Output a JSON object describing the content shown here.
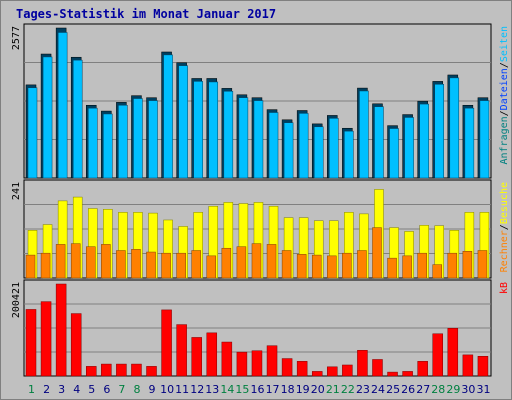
{
  "chart_data": {
    "type": "bar",
    "title": "Tages-Statistik im Monat Januar 2017",
    "categories": [
      "1",
      "2",
      "3",
      "4",
      "5",
      "6",
      "7",
      "8",
      "9",
      "10",
      "11",
      "12",
      "13",
      "14",
      "15",
      "16",
      "17",
      "18",
      "19",
      "20",
      "21",
      "22",
      "23",
      "24",
      "25",
      "26",
      "27",
      "28",
      "29",
      "30",
      "31"
    ],
    "weekend_days": [
      "1",
      "7",
      "8",
      "14",
      "15",
      "21",
      "22",
      "28",
      "29"
    ],
    "colors": {
      "frame_dark": "#808080",
      "panel_bg": "#c0c0c0",
      "title": "#0000a0",
      "gridline": "#808080",
      "anfragen": "#008080",
      "dateien": "#0040ff",
      "seiten": "#00c0ff",
      "besuche": "#ffff00",
      "rechner": "#ff8000",
      "kb": "#ff0000",
      "weekday_label": "#000080",
      "weekend_label": "#008040"
    },
    "panels": [
      {
        "tick_label": "2577",
        "ymax": 2577,
        "legend": [
          {
            "text": "Anfragen",
            "color": "#008080"
          },
          {
            "text": "/",
            "color": "#000000"
          },
          {
            "text": "Dateien",
            "color": "#0040ff"
          },
          {
            "text": "/",
            "color": "#000000"
          },
          {
            "text": "Seiten",
            "color": "#00c0ff"
          }
        ],
        "series": [
          {
            "name": "Anfragen",
            "color": "#004060",
            "values": [
              1600,
              2130,
              2577,
              2075,
              1250,
              1150,
              1300,
              1415,
              1380,
              2165,
              1980,
              1710,
              1710,
              1540,
              1430,
              1380,
              1175,
              1000,
              1160,
              930,
              1075,
              855,
              1545,
              1275,
              900,
              1090,
              1320,
              1660,
              1770,
              1250,
              1380
            ]
          },
          {
            "name": "Dateien",
            "color": "#00c0ff",
            "values": [
              1550,
              2080,
              2500,
              2025,
              1200,
              1100,
              1250,
              1365,
              1330,
              2115,
              1930,
              1660,
              1650,
              1490,
              1380,
              1330,
              1125,
              950,
              1110,
              880,
              1025,
              805,
              1495,
              1225,
              850,
              1040,
              1270,
              1610,
              1720,
              1200,
              1330
            ]
          }
        ]
      },
      {
        "tick_label": "241",
        "ymax": 241,
        "legend": [
          {
            "text": "Rechner",
            "color": "#ff8000"
          },
          {
            "text": "/",
            "color": "#000000"
          },
          {
            "text": "Besuche",
            "color": "#ffff00"
          }
        ],
        "series": [
          {
            "name": "Besuche",
            "color": "#ffff00",
            "values": [
              125,
              140,
              202,
              212,
              182,
              180,
              172,
              172,
              170,
              152,
              135,
              172,
              188,
              198,
              195,
              198,
              188,
              158,
              158,
              150,
              150,
              172,
              168,
              232,
              132,
              122,
              138,
              137,
              125,
              172,
              172
            ]
          },
          {
            "name": "Rechner",
            "color": "#ff8000",
            "values": [
              60,
              65,
              88,
              90,
              82,
              88,
              72,
              75,
              68,
              65,
              65,
              72,
              58,
              78,
              82,
              90,
              88,
              72,
              62,
              60,
              58,
              65,
              72,
              132,
              52,
              58,
              65,
              35,
              65,
              70,
              72
            ]
          }
        ]
      },
      {
        "tick_label": "200421",
        "ymax": 200421,
        "legend": [
          {
            "text": "kB",
            "color": "#ff0000"
          }
        ],
        "series": [
          {
            "name": "kB",
            "color": "#ff0000",
            "values": [
              145000,
              162000,
              200421,
              136000,
              21000,
              26000,
              26000,
              26000,
              21000,
              144000,
              112000,
              84000,
              94000,
              74000,
              52000,
              55000,
              66000,
              38000,
              32000,
              10000,
              20000,
              24000,
              56000,
              36000,
              8500,
              10000,
              32000,
              92000,
              104000,
              46000,
              43000
            ]
          }
        ]
      }
    ]
  }
}
